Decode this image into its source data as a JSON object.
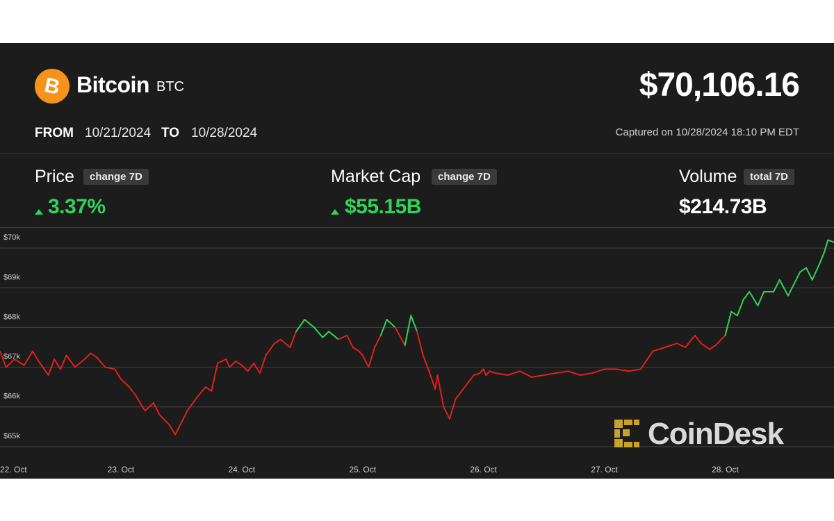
{
  "header": {
    "coin_name": "Bitcoin",
    "ticker": "BTC",
    "price": "$70,106.16",
    "from_label": "FROM",
    "from_date": "10/21/2024",
    "to_label": "TO",
    "to_date": "10/28/2024",
    "captured": "Captured on 10/28/2024 18:10 PM EDT",
    "logo_icon": "bitcoin-icon",
    "logo_color": "#f7931a"
  },
  "metrics": {
    "price": {
      "title": "Price",
      "tag": "change 7D",
      "value": "3.37%",
      "direction": "up"
    },
    "market_cap": {
      "title": "Market Cap",
      "tag": "change 7D",
      "value": "$55.15B",
      "direction": "up"
    },
    "volume": {
      "title": "Volume",
      "tag": "total 7D",
      "value": "$214.73B"
    }
  },
  "watermark": "CoinDesk",
  "colors": {
    "background": "#1c1c1c",
    "up": "#2fd35a",
    "down": "#e0201d",
    "gridline": "#444444",
    "watermark_accent": "#c9a227"
  },
  "chart_data": {
    "type": "line",
    "ylim": [
      64700,
      70300
    ],
    "y_ticks": [
      65000,
      66000,
      67000,
      68000,
      69000,
      70000
    ],
    "y_tick_labels": [
      "$65k",
      "$66k",
      "$67k",
      "$68k",
      "$69k",
      "$70k"
    ],
    "x_tick_labels": [
      "22. Oct",
      "23. Oct",
      "24. Oct",
      "25. Oct",
      "26. Oct",
      "27. Oct",
      "28. Oct"
    ],
    "x_tick_days": [
      22,
      23,
      24,
      25,
      26,
      27,
      28
    ],
    "xlim_days": [
      22.0,
      28.9
    ],
    "grid": true,
    "baseline": 67800,
    "series": [
      {
        "x": [
          22.0,
          22.05,
          22.12,
          22.2,
          22.27,
          22.32,
          22.4,
          22.45,
          22.5,
          22.55,
          22.62,
          22.7,
          22.75,
          22.8,
          22.87,
          22.95,
          23.0,
          23.07,
          23.12,
          23.2,
          23.27,
          23.32,
          23.4,
          23.45,
          23.55,
          23.62,
          23.7,
          23.75,
          23.8,
          23.87,
          23.9,
          23.95,
          24.0,
          24.05,
          24.1,
          24.15,
          24.2,
          24.27,
          24.32,
          24.4,
          24.45,
          24.52,
          24.6,
          24.67,
          24.72,
          24.8,
          24.87,
          24.92,
          24.97,
          25.0,
          25.05,
          25.1,
          25.15,
          25.2,
          25.27,
          25.35,
          25.4,
          25.45,
          25.5,
          25.55,
          25.6,
          25.62,
          25.67,
          25.72,
          25.77,
          25.82,
          25.87,
          25.92,
          25.97,
          26.0,
          26.02,
          26.05,
          26.1,
          26.2,
          26.3,
          26.4,
          26.5,
          26.6,
          26.7,
          26.8,
          26.9,
          27.0,
          27.1,
          27.2,
          27.3,
          27.4,
          27.5,
          27.6,
          27.67,
          27.75,
          27.8,
          27.87,
          27.92,
          28.0,
          28.05,
          28.1,
          28.15,
          28.2,
          28.27,
          28.32,
          28.4,
          28.45,
          28.52,
          28.57,
          28.62,
          28.67,
          28.72,
          28.78,
          28.82,
          28.85,
          28.9
        ],
        "y": [
          67400,
          67000,
          67200,
          67050,
          67400,
          67150,
          66800,
          67200,
          66950,
          67300,
          67000,
          67200,
          67350,
          67250,
          67000,
          66950,
          66700,
          66500,
          66300,
          65900,
          66100,
          65800,
          65550,
          65300,
          65900,
          66200,
          66500,
          66400,
          67100,
          67200,
          67000,
          67150,
          67050,
          66900,
          67100,
          66850,
          67300,
          67600,
          67700,
          67500,
          67900,
          68200,
          68000,
          67750,
          67900,
          67700,
          67800,
          67500,
          67400,
          67300,
          67000,
          67500,
          67800,
          68200,
          68000,
          67550,
          68300,
          67900,
          67300,
          66900,
          66450,
          66800,
          66000,
          65700,
          66200,
          66400,
          66600,
          66800,
          66850,
          66950,
          66800,
          66900,
          66850,
          66800,
          66900,
          66750,
          66800,
          66850,
          66900,
          66800,
          66850,
          66950,
          66950,
          66900,
          66950,
          67400,
          67500,
          67600,
          67500,
          67800,
          67600,
          67450,
          67550,
          67800,
          68400,
          68300,
          68700,
          68900,
          68550,
          68900,
          68900,
          69200,
          68800,
          69100,
          69400,
          69500,
          69200,
          69600,
          69900,
          70200,
          70150
        ]
      }
    ]
  }
}
